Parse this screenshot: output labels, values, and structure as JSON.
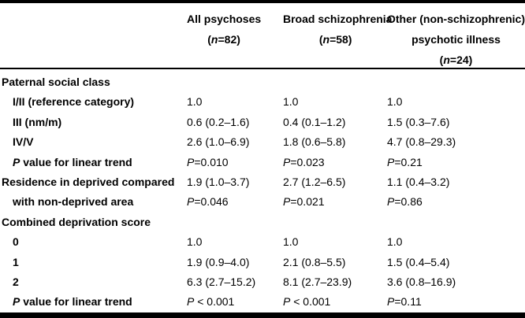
{
  "table": {
    "colors": {
      "text": "#000000",
      "background": "#ffffff",
      "rule": "#000000"
    },
    "columns": [
      {
        "id": "all-psychoses",
        "lines": [
          "All psychoses",
          "(n=82)"
        ]
      },
      {
        "id": "broad-schizophrenia",
        "lines": [
          "Broad schizophrenia",
          "(n=58)"
        ]
      },
      {
        "id": "other-psychotic-illness",
        "lines": [
          "Other (non-schizophrenic)",
          "psychotic illness",
          "(n=24)"
        ]
      }
    ],
    "rows": [
      {
        "label": "Paternal social class",
        "indent": false,
        "section": true,
        "values": [
          "",
          "",
          ""
        ]
      },
      {
        "label": "I/II (reference category)",
        "indent": true,
        "section": false,
        "values": [
          "1.0",
          "1.0",
          "1.0"
        ]
      },
      {
        "label": "III (nm/m)",
        "indent": true,
        "section": false,
        "values": [
          "0.6 (0.2–1.6)",
          "0.4 (0.1–1.2)",
          "1.5 (0.3–7.6)"
        ]
      },
      {
        "label": "IV/V",
        "indent": true,
        "section": false,
        "values": [
          "2.6 (1.0–6.9)",
          "1.8 (0.6–5.8)",
          "4.7 (0.8–29.3)"
        ]
      },
      {
        "label": "P value for linear trend",
        "indent": true,
        "section": false,
        "values": [
          "P=0.010",
          "P=0.023",
          "P=0.21"
        ]
      },
      {
        "label": "Residence in deprived compared",
        "indent": false,
        "section": false,
        "values": [
          "1.9 (1.0–3.7)",
          "2.7 (1.2–6.5)",
          "1.1 (0.4–3.2)"
        ]
      },
      {
        "label": "with non-deprived area",
        "indent": true,
        "section": false,
        "values": [
          "P=0.046",
          "P=0.021",
          "P=0.86"
        ]
      },
      {
        "label": "Combined deprivation score",
        "indent": false,
        "section": true,
        "values": [
          "",
          "",
          ""
        ]
      },
      {
        "label": "0",
        "indent": true,
        "section": false,
        "values": [
          "1.0",
          "1.0",
          "1.0"
        ]
      },
      {
        "label": "1",
        "indent": true,
        "section": false,
        "values": [
          "1.9 (0.9–4.0)",
          "2.1 (0.8–5.5)",
          "1.5 (0.4–5.4)"
        ]
      },
      {
        "label": "2",
        "indent": true,
        "section": false,
        "values": [
          "6.3 (2.7–15.2)",
          "8.1 (2.7–23.9)",
          "3.6 (0.8–16.9)"
        ]
      },
      {
        "label": "P value for linear trend",
        "indent": true,
        "section": false,
        "values": [
          "P < 0.001",
          "P < 0.001",
          "P=0.11"
        ]
      }
    ]
  }
}
